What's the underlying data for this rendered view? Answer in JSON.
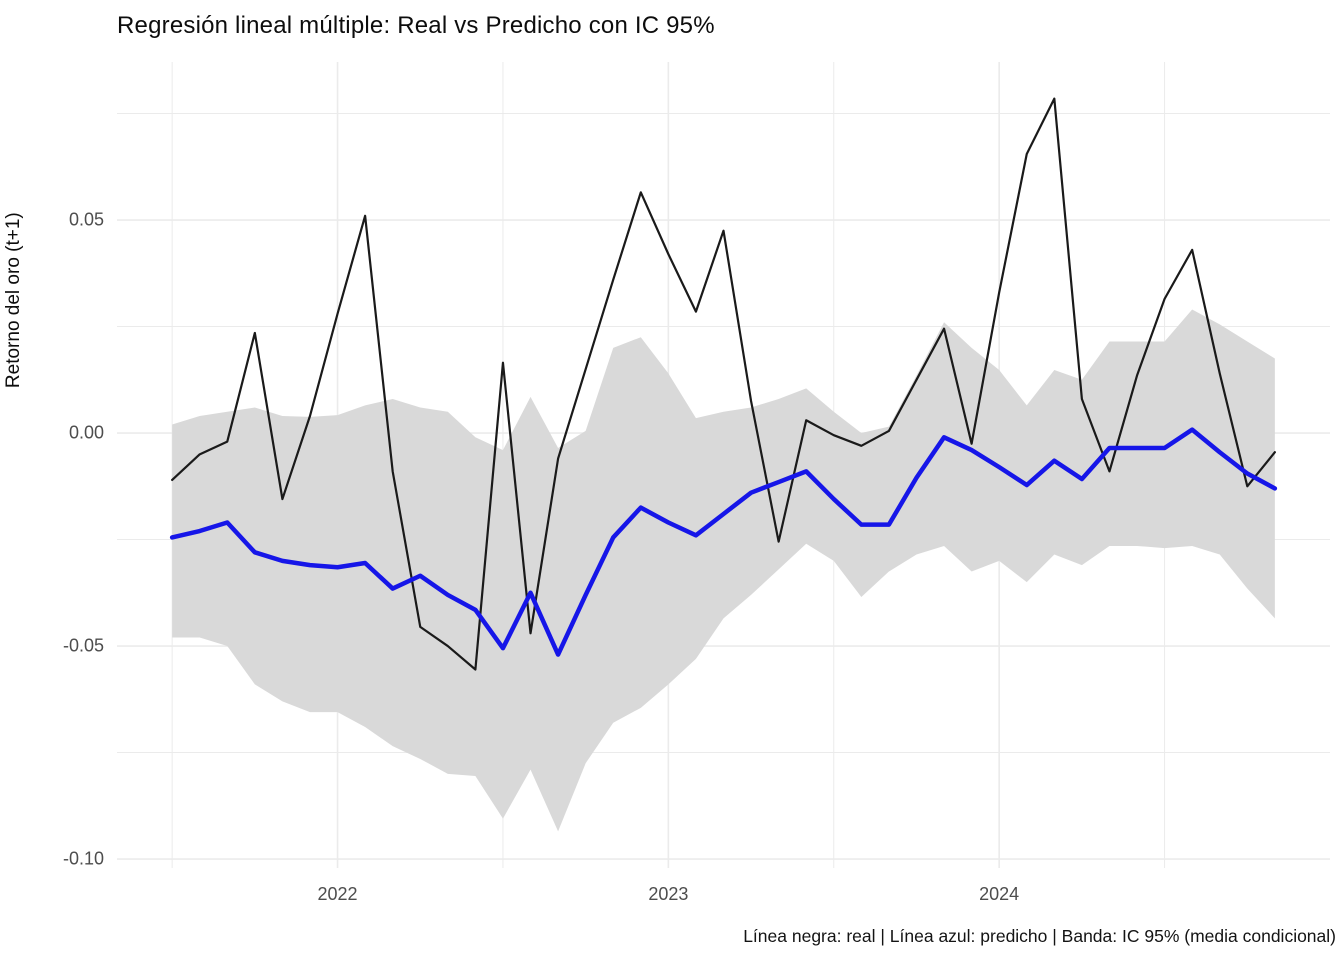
{
  "title": "Regresión lineal múltiple: Real vs Predicho con IC 95%",
  "y_axis_title": "Retorno del oro (t+1)",
  "caption": "Línea negra: real | Línea azul: predicho | Banda: IC 95% (media condicional)",
  "chart_data": {
    "type": "line",
    "title": "Regresión lineal múltiple: Real vs Predicho con IC 95%",
    "xlabel": "",
    "ylabel": "Retorno del oro (t+1)",
    "legend_note": "Línea negra: real | Línea azul: predicho | Banda: IC 95% (media condicional)",
    "grid": true,
    "x": [
      "2021-07",
      "2021-08",
      "2021-09",
      "2021-10",
      "2021-11",
      "2021-12",
      "2022-01",
      "2022-02",
      "2022-03",
      "2022-04",
      "2022-05",
      "2022-06",
      "2022-07",
      "2022-08",
      "2022-09",
      "2022-10",
      "2022-11",
      "2022-12",
      "2023-01",
      "2023-02",
      "2023-03",
      "2023-04",
      "2023-05",
      "2023-06",
      "2023-07",
      "2023-08",
      "2023-09",
      "2023-10",
      "2023-11",
      "2023-12",
      "2024-01",
      "2024-02",
      "2024-03",
      "2024-04",
      "2024-05",
      "2024-06",
      "2024-07",
      "2024-08",
      "2024-09",
      "2024-10",
      "2024-11"
    ],
    "series": [
      {
        "name": "real",
        "color": "#1a1a1a",
        "width": 2.2,
        "values": [
          -0.011,
          -0.005,
          -0.002,
          0.0235,
          -0.0155,
          0.004,
          0.028,
          0.051,
          -0.009,
          -0.0455,
          -0.05,
          -0.0555,
          0.0165,
          -0.047,
          -0.006,
          0.015,
          0.036,
          0.0565,
          0.042,
          0.0285,
          0.0475,
          0.0075,
          -0.0255,
          0.003,
          -0.0005,
          -0.003,
          0.0005,
          0.0125,
          0.0245,
          -0.0025,
          0.033,
          0.0655,
          0.0785,
          0.008,
          -0.009,
          0.0135,
          0.0315,
          0.043,
          0.014,
          -0.0125,
          -0.0045
        ]
      },
      {
        "name": "predicho",
        "color": "#1616e8",
        "width": 4.5,
        "values": [
          -0.0245,
          -0.023,
          -0.021,
          -0.028,
          -0.03,
          -0.031,
          -0.0315,
          -0.0305,
          -0.0365,
          -0.0335,
          -0.038,
          -0.0415,
          -0.0505,
          -0.0375,
          -0.052,
          -0.038,
          -0.0245,
          -0.0175,
          -0.021,
          -0.024,
          -0.019,
          -0.014,
          -0.0115,
          -0.009,
          -0.0155,
          -0.0215,
          -0.0215,
          -0.0105,
          -0.001,
          -0.004,
          -0.008,
          -0.0122,
          -0.0065,
          -0.0108,
          -0.0035,
          -0.0035,
          -0.0035,
          0.0008,
          -0.0045,
          -0.0095,
          -0.013
        ]
      }
    ],
    "band": {
      "name": "IC 95% (media condicional)",
      "color": "#d9d9d9",
      "upper": [
        0.002,
        0.004,
        0.005,
        0.006,
        0.004,
        0.0038,
        0.0042,
        0.0065,
        0.008,
        0.006,
        0.005,
        -0.001,
        -0.004,
        0.0085,
        -0.0035,
        0.0005,
        0.02,
        0.0225,
        0.014,
        0.0035,
        0.005,
        0.006,
        0.008,
        0.0105,
        0.005,
        0.0,
        0.0015,
        0.0135,
        0.026,
        0.02,
        0.0148,
        0.0065,
        0.0148,
        0.0125,
        0.0215,
        0.0215,
        0.0215,
        0.029,
        0.0255,
        0.0215,
        0.0175
      ],
      "lower": [
        -0.048,
        -0.048,
        -0.05,
        -0.059,
        -0.063,
        -0.0655,
        -0.0655,
        -0.069,
        -0.0735,
        -0.0765,
        -0.08,
        -0.0805,
        -0.0905,
        -0.079,
        -0.0935,
        -0.0775,
        -0.068,
        -0.0645,
        -0.059,
        -0.053,
        -0.0435,
        -0.038,
        -0.032,
        -0.026,
        -0.03,
        -0.0385,
        -0.0325,
        -0.0285,
        -0.0265,
        -0.0325,
        -0.03,
        -0.035,
        -0.0285,
        -0.031,
        -0.0265,
        -0.0265,
        -0.027,
        -0.0265,
        -0.0285,
        -0.0365,
        -0.0435
      ]
    },
    "x_ticks": [
      {
        "label": "2022",
        "month": "2022-01"
      },
      {
        "label": "2023",
        "month": "2023-01"
      },
      {
        "label": "2024",
        "month": "2024-01"
      }
    ],
    "x_minor": [
      "2021-07",
      "2022-07",
      "2023-07",
      "2024-07"
    ],
    "y_ticks": [
      0.05,
      0.0,
      -0.05,
      -0.1
    ],
    "y_minor": [
      0.075,
      0.025,
      -0.025,
      -0.075
    ],
    "ylim": [
      -0.1021,
      0.0871
    ],
    "grid_color": "#ebebeb"
  }
}
